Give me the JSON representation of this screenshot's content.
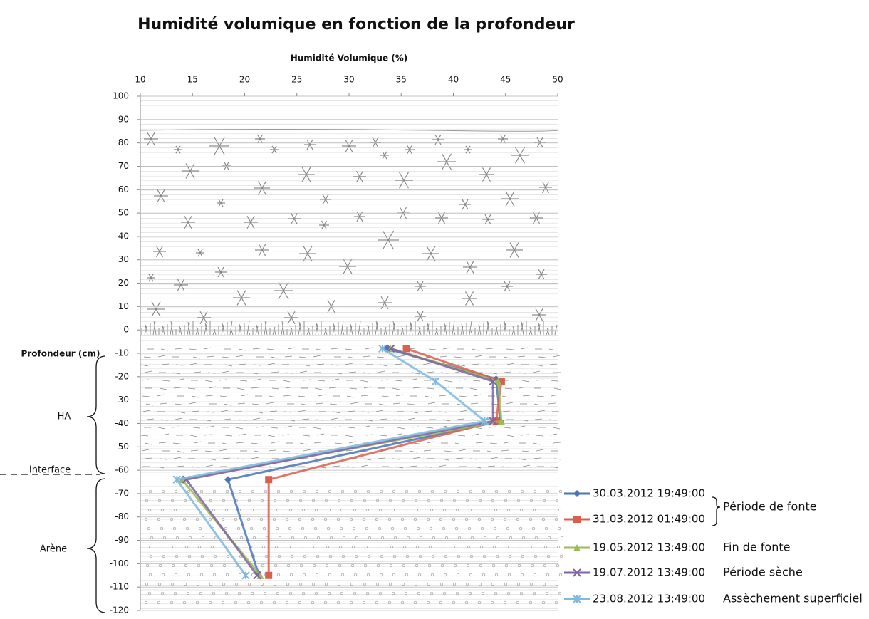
{
  "chart_data": {
    "type": "line",
    "title": "Humidité volumique en fonction de la profondeur",
    "x_label": "Humidité Volumique (%)",
    "y_label": "Profondeur (cm)",
    "zones": [
      "HA",
      "Interface",
      "Arène"
    ],
    "legend_groups": [
      "Période de fonte",
      "Fin de fonte",
      "Période sèche",
      "Assèchement superficiel"
    ],
    "xlim": [
      10,
      50
    ],
    "xticks": [
      10,
      15,
      20,
      25,
      30,
      35,
      40,
      45,
      50
    ],
    "ylim": [
      -120,
      100
    ],
    "yticks": [
      100,
      90,
      80,
      70,
      60,
      50,
      40,
      30,
      20,
      10,
      0,
      -10,
      -20,
      -30,
      -40,
      -50,
      -60,
      -70,
      -80,
      -90,
      -100,
      -110,
      -120
    ],
    "grid": true,
    "series": [
      {
        "name": "30.03.2012 19:49:00",
        "color": "#4a74b8",
        "marker": "diamond",
        "x": [
          33.6,
          44.1,
          44.5,
          18.4,
          21.3
        ],
        "values": [
          -8,
          -21,
          -39,
          -64,
          -104
        ]
      },
      {
        "name": "31.03.2012 01:49:00",
        "color": "#d9604e",
        "marker": "square",
        "x": [
          35.5,
          44.6,
          44.1,
          22.3,
          22.3
        ],
        "values": [
          -8,
          -22,
          -39,
          -64,
          -105
        ]
      },
      {
        "name": "19.05.2012 13:49:00",
        "color": "#9bbb59",
        "marker": "triangle",
        "x": [
          34,
          44.3,
          44.6,
          14,
          21.5
        ],
        "values": [
          -8,
          -22,
          -39,
          -64,
          -105
        ]
      },
      {
        "name": "19.07.2012 13:49:00",
        "color": "#8064a2",
        "marker": "x",
        "x": [
          34,
          43.8,
          43.8,
          14.4,
          21.2
        ],
        "values": [
          -8,
          -22,
          -39,
          -64,
          -105
        ]
      },
      {
        "name": "23.08.2012 13:49:00",
        "color": "#7fb9df",
        "marker": "star",
        "x": [
          33.2,
          38.3,
          43,
          13.5,
          20.1
        ],
        "values": [
          -8,
          -22,
          -39,
          -64,
          -105
        ]
      }
    ]
  }
}
